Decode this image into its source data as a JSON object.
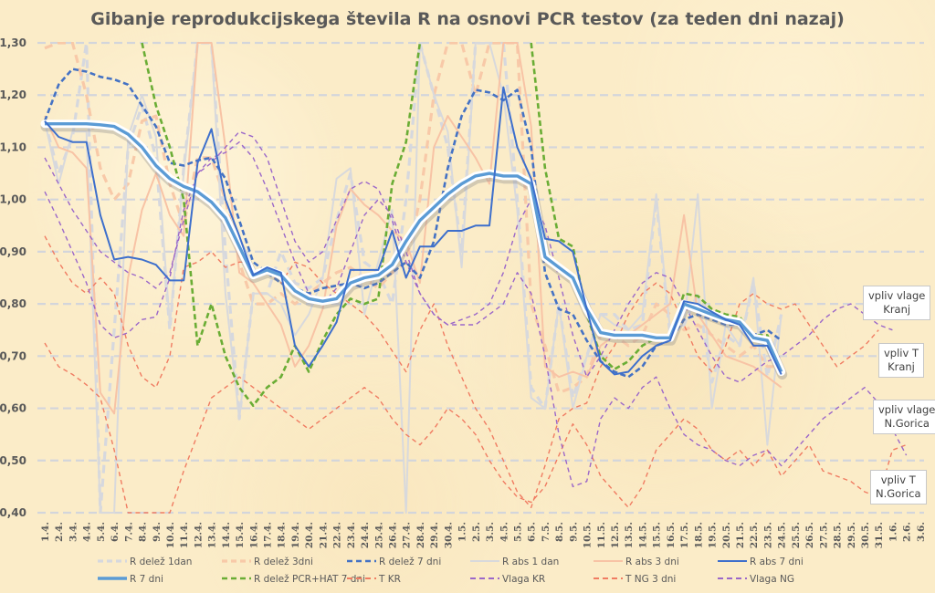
{
  "chart_data": {
    "type": "line",
    "title": "Gibanje reprodukcijskega števila R na osnovi PCR testov (za teden dni nazaj)",
    "xlabel": "",
    "ylabel": "",
    "ylim": [
      0.4,
      1.3
    ],
    "grid": true,
    "legend_position": "bottom",
    "y_ticks": [
      "0,40",
      "0,50",
      "0,60",
      "0,70",
      "0,80",
      "0,90",
      "1,00",
      "1,10",
      "1,20",
      "1,30"
    ],
    "y_tick_values": [
      0.4,
      0.5,
      0.6,
      0.7,
      0.8,
      0.9,
      1.0,
      1.1,
      1.2,
      1.3
    ],
    "categories": [
      "1.4.",
      "2.4.",
      "3.4.",
      "4.4.",
      "5.4.",
      "6.4.",
      "7.4.",
      "8.4.",
      "9.4.",
      "10.4.",
      "11.4.",
      "12.4.",
      "13.4.",
      "14.4.",
      "15.4.",
      "16.4.",
      "17.4.",
      "18.4.",
      "19.4.",
      "20.4.",
      "21.4.",
      "22.4.",
      "23.4.",
      "24.4.",
      "25.4.",
      "26.4.",
      "27.4.",
      "28.4.",
      "29.4.",
      "30.4.",
      "1.5.",
      "2.5.",
      "3.5.",
      "4.5.",
      "5.5.",
      "6.5.",
      "7.5.",
      "8.5.",
      "9.5.",
      "10.5.",
      "11.5.",
      "12.5.",
      "13.5.",
      "14.5.",
      "15.5.",
      "16.5.",
      "17.5.",
      "18.5.",
      "19.5.",
      "20.5.",
      "21.5.",
      "22.5.",
      "23.5.",
      "24.5.",
      "25.5.",
      "26.5.",
      "27.5.",
      "28.5.",
      "29.5.",
      "30.5.",
      "31.5.",
      "1.6.",
      "2.6.",
      "3.6."
    ],
    "series": [
      {
        "name": "R delež 1dan",
        "color": "#d6d8de",
        "style": "dash-thick",
        "values": [
          1.15,
          1.05,
          1.12,
          1.3,
          0.4,
          0.75,
          1.1,
          1.18,
          1.08,
          0.75,
          1.06,
          1.3,
          1.3,
          0.9,
          0.58,
          0.82,
          0.82,
          0.9,
          0.84,
          0.83,
          0.85,
          0.96,
          1.05,
          0.88,
          0.86,
          0.8,
          1.0,
          1.3,
          1.2,
          1.1,
          0.9,
          1.3,
          1.3,
          1.3,
          1.0,
          0.64,
          0.6,
          0.8,
          0.62,
          0.7,
          0.78,
          0.78,
          0.75,
          0.76,
          1.0,
          0.74,
          0.76,
          0.82,
          0.65,
          0.74,
          0.72,
          0.84,
          0.66,
          0.78,
          null,
          null,
          null,
          null,
          null,
          null,
          null,
          null,
          null,
          null
        ]
      },
      {
        "name": "R delež 3dni",
        "color": "#f8c9a8",
        "style": "dash-thick",
        "values": [
          1.29,
          1.3,
          1.3,
          1.2,
          1.06,
          1.0,
          1.03,
          1.15,
          1.16,
          1.03,
          0.95,
          1.08,
          1.08,
          1.0,
          0.88,
          0.8,
          0.8,
          0.82,
          0.8,
          0.82,
          0.84,
          0.86,
          0.87,
          0.85,
          0.83,
          0.86,
          0.88,
          1.0,
          1.2,
          1.3,
          1.3,
          1.2,
          1.3,
          1.3,
          1.3,
          0.8,
          0.72,
          0.63,
          0.64,
          0.66,
          0.74,
          0.74,
          0.72,
          0.74,
          0.8,
          0.78,
          0.75,
          0.76,
          0.74,
          0.72,
          0.7,
          0.72,
          0.68,
          0.68,
          null,
          null,
          null,
          null,
          null,
          null,
          null,
          null,
          null,
          null
        ]
      },
      {
        "name": "R delež 7 dni",
        "color": "#4472c4",
        "style": "dash",
        "values": [
          1.15,
          1.22,
          1.25,
          1.245,
          1.235,
          1.23,
          1.22,
          1.18,
          1.14,
          1.07,
          1.065,
          1.075,
          1.08,
          1.04,
          0.96,
          0.88,
          0.86,
          0.84,
          0.83,
          0.82,
          0.83,
          0.835,
          0.84,
          0.83,
          0.84,
          0.86,
          0.88,
          0.85,
          0.92,
          1.06,
          1.16,
          1.21,
          1.205,
          1.19,
          1.21,
          1.1,
          0.86,
          0.79,
          0.78,
          0.73,
          0.69,
          0.67,
          0.66,
          0.68,
          0.72,
          0.73,
          0.77,
          0.78,
          0.77,
          0.76,
          0.76,
          0.74,
          0.75,
          0.73,
          null,
          null,
          null,
          null,
          null,
          null,
          null,
          null,
          null,
          null
        ]
      },
      {
        "name": "R abs 1 dan",
        "color": "#d8d9dc",
        "style": "solid",
        "values": [
          1.15,
          1.03,
          1.13,
          1.13,
          0.4,
          0.4,
          1.12,
          1.2,
          1.12,
          0.76,
          1.05,
          1.3,
          1.3,
          0.82,
          0.58,
          0.82,
          0.82,
          0.8,
          0.74,
          0.78,
          0.85,
          1.04,
          1.06,
          0.78,
          0.88,
          0.98,
          0.4,
          1.3,
          1.2,
          1.13,
          0.87,
          1.3,
          1.3,
          1.2,
          0.98,
          0.62,
          0.6,
          0.8,
          0.6,
          0.7,
          0.78,
          0.76,
          0.75,
          0.78,
          1.01,
          0.75,
          0.76,
          1.01,
          0.6,
          0.76,
          0.72,
          0.85,
          0.53,
          0.78,
          null,
          null,
          null,
          null,
          null,
          null,
          null,
          null,
          null,
          null
        ]
      },
      {
        "name": "R abs 3 dni",
        "color": "#f8c3a5",
        "style": "solid",
        "values": [
          1.16,
          1.1,
          1.09,
          1.06,
          0.63,
          0.59,
          0.85,
          0.98,
          1.05,
          0.97,
          0.93,
          1.3,
          1.3,
          1.1,
          0.86,
          0.84,
          0.8,
          0.76,
          0.68,
          0.72,
          0.79,
          0.95,
          1.02,
          0.99,
          0.97,
          0.94,
          0.92,
          0.84,
          1.1,
          1.16,
          1.12,
          1.08,
          1.03,
          1.3,
          1.3,
          1.14,
          0.68,
          0.66,
          0.67,
          0.66,
          0.72,
          0.74,
          0.74,
          0.76,
          0.78,
          0.8,
          0.97,
          0.78,
          0.74,
          0.7,
          0.69,
          0.68,
          0.66,
          0.64,
          null,
          null,
          null,
          null,
          null,
          null,
          null,
          null,
          null,
          null
        ]
      },
      {
        "name": "R abs 7 dni",
        "color": "#3d6fcc",
        "style": "solid",
        "values": [
          1.15,
          1.12,
          1.11,
          1.11,
          0.97,
          0.885,
          0.89,
          0.885,
          0.875,
          0.845,
          0.845,
          1.07,
          1.135,
          1.0,
          0.93,
          0.855,
          0.87,
          0.86,
          0.72,
          0.68,
          0.72,
          0.765,
          0.865,
          0.865,
          0.865,
          0.94,
          0.85,
          0.91,
          0.91,
          0.94,
          0.94,
          0.95,
          0.95,
          1.215,
          1.1,
          1.04,
          0.925,
          0.92,
          0.9,
          0.79,
          0.69,
          0.665,
          0.67,
          0.7,
          0.72,
          0.73,
          0.805,
          0.8,
          0.785,
          0.77,
          0.76,
          0.72,
          0.72,
          0.665,
          null,
          null,
          null,
          null,
          null,
          null,
          null,
          null,
          null,
          null
        ]
      },
      {
        "name": "R 7 dni",
        "color": "#5b9bd5",
        "style": "solid-thick-glow",
        "values": [
          1.145,
          1.145,
          1.145,
          1.145,
          1.143,
          1.14,
          1.125,
          1.1,
          1.065,
          1.04,
          1.025,
          1.015,
          0.995,
          0.965,
          0.91,
          0.855,
          0.865,
          0.855,
          0.825,
          0.81,
          0.805,
          0.81,
          0.84,
          0.85,
          0.855,
          0.875,
          0.92,
          0.96,
          0.985,
          1.01,
          1.03,
          1.045,
          1.05,
          1.045,
          1.045,
          1.03,
          0.89,
          0.87,
          0.85,
          0.79,
          0.745,
          0.74,
          0.74,
          0.74,
          0.735,
          0.735,
          0.8,
          0.79,
          0.78,
          0.77,
          0.765,
          0.735,
          0.73,
          0.67,
          null,
          null,
          null,
          null,
          null,
          null,
          null,
          null,
          null,
          null
        ]
      },
      {
        "name": "R delež PCR+HAT 7 dni",
        "color": "#6aad35",
        "style": "dash",
        "values": [
          null,
          null,
          null,
          null,
          null,
          null,
          null,
          1.3,
          1.18,
          1.1,
          1.0,
          0.72,
          0.8,
          0.7,
          0.64,
          0.605,
          0.64,
          0.66,
          0.72,
          0.67,
          0.73,
          0.78,
          0.81,
          0.8,
          0.81,
          1.03,
          1.11,
          1.3,
          null,
          null,
          null,
          null,
          null,
          null,
          null,
          1.3,
          1.06,
          0.925,
          0.91,
          0.78,
          0.7,
          0.675,
          0.69,
          0.72,
          0.735,
          0.74,
          0.82,
          0.815,
          0.79,
          0.78,
          0.775,
          0.74,
          0.74,
          0.68,
          null,
          null,
          null,
          null,
          null,
          null,
          null,
          null,
          null,
          null
        ]
      },
      {
        "name": "T KR",
        "color": "#f07c62",
        "style": "short-dash",
        "values": [
          0.93,
          0.88,
          0.84,
          0.82,
          0.85,
          0.82,
          0.72,
          0.66,
          0.64,
          0.7,
          0.87,
          0.88,
          0.9,
          0.87,
          0.88,
          0.88,
          0.86,
          0.84,
          0.88,
          0.87,
          0.84,
          0.82,
          0.8,
          0.78,
          0.75,
          0.71,
          0.67,
          0.75,
          0.8,
          0.72,
          0.66,
          0.6,
          0.56,
          0.5,
          0.44,
          0.41,
          0.49,
          0.58,
          0.6,
          0.61,
          0.68,
          0.72,
          0.78,
          0.82,
          0.84,
          0.82,
          0.76,
          0.7,
          0.67,
          0.72,
          0.8,
          0.82,
          0.8,
          0.79,
          0.8,
          0.76,
          0.72,
          0.68,
          0.7,
          0.72,
          0.75,
          null,
          null,
          null
        ]
      },
      {
        "name": "Vlaga KR",
        "color": "#9b67c9",
        "style": "short-dash",
        "values": [
          1.08,
          1.03,
          0.98,
          0.94,
          0.9,
          0.88,
          0.86,
          0.85,
          0.83,
          0.86,
          0.96,
          1.05,
          1.07,
          1.1,
          1.13,
          1.12,
          1.08,
          1.0,
          0.92,
          0.88,
          0.9,
          0.96,
          1.02,
          1.035,
          1.02,
          0.96,
          0.88,
          0.82,
          0.78,
          0.76,
          0.77,
          0.78,
          0.8,
          0.86,
          0.95,
          1.0,
          0.95,
          0.85,
          0.74,
          0.66,
          0.7,
          0.75,
          0.8,
          0.84,
          0.86,
          0.85,
          0.8,
          0.75,
          0.7,
          0.66,
          0.65,
          0.67,
          0.69,
          0.7,
          0.72,
          0.74,
          0.77,
          0.79,
          0.8,
          0.78,
          0.76,
          0.75,
          null,
          null
        ]
      },
      {
        "name": "T NG 3 dni",
        "color": "#f07c62",
        "style": "short-dash",
        "values": [
          0.725,
          0.68,
          0.665,
          0.645,
          0.62,
          0.52,
          0.4,
          0.4,
          0.4,
          0.4,
          0.48,
          0.55,
          0.62,
          0.64,
          0.66,
          0.64,
          0.62,
          0.6,
          0.58,
          0.56,
          0.58,
          0.6,
          0.62,
          0.64,
          0.62,
          0.58,
          0.55,
          0.53,
          0.56,
          0.6,
          0.58,
          0.55,
          0.5,
          0.46,
          0.43,
          0.42,
          0.45,
          0.51,
          0.57,
          0.53,
          0.47,
          0.44,
          0.41,
          0.45,
          0.52,
          0.55,
          0.58,
          0.56,
          0.52,
          0.5,
          0.52,
          0.49,
          0.52,
          0.47,
          0.5,
          0.53,
          0.48,
          0.47,
          0.46,
          0.44,
          0.43,
          0.52,
          0.53,
          null
        ]
      },
      {
        "name": "Vlaga NG",
        "color": "#9b67c9",
        "style": "short-dash",
        "values": [
          1.015,
          0.96,
          0.9,
          0.84,
          0.76,
          0.735,
          0.745,
          0.77,
          0.775,
          0.85,
          0.98,
          1.05,
          1.08,
          1.09,
          1.11,
          1.08,
          1.02,
          0.95,
          0.88,
          0.82,
          0.8,
          0.83,
          0.9,
          0.97,
          1.0,
          0.97,
          0.9,
          0.82,
          0.78,
          0.76,
          0.76,
          0.76,
          0.78,
          0.8,
          0.86,
          0.82,
          0.7,
          0.55,
          0.45,
          0.46,
          0.58,
          0.62,
          0.6,
          0.64,
          0.66,
          0.6,
          0.55,
          0.53,
          0.52,
          0.5,
          0.49,
          0.51,
          0.52,
          0.49,
          0.52,
          0.55,
          0.58,
          0.6,
          0.62,
          0.64,
          0.61,
          0.56,
          0.51,
          null
        ]
      }
    ],
    "legend": [
      "R delež 1dan",
      "R delež 3dni",
      "R delež 7 dni",
      "R abs 1 dan",
      "R abs 3 dni",
      "R abs 7 dni",
      "R 7 dni",
      "R delež PCR+HAT 7 dni",
      "T KR",
      "Vlaga KR",
      "T NG 3 dni",
      "Vlaga NG"
    ],
    "annotations": [
      {
        "line1": "vpliv vlage",
        "line2": "Kranj"
      },
      {
        "line1": "vpliv T",
        "line2": "Kranj"
      },
      {
        "line1": "vpliv vlage",
        "line2": "N.Gorica"
      },
      {
        "line1": "vpliv T",
        "line2": "N.Gorica"
      }
    ]
  }
}
